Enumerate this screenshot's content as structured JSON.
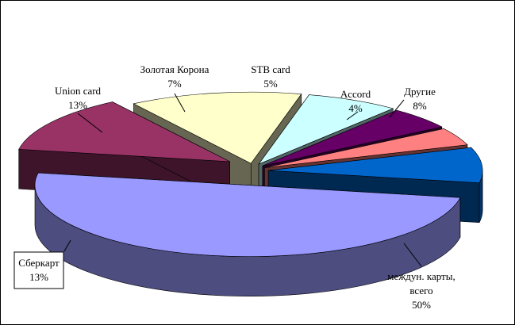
{
  "chart_data": {
    "type": "pie",
    "style": "3d-exploded",
    "categories": [
      "междун. карты, всего",
      "Сберкарт",
      "Union card",
      "Золотая Корона",
      "STB card",
      "Accord",
      "Другие"
    ],
    "values": [
      50,
      13,
      13,
      7,
      5,
      4,
      8
    ],
    "labels": [
      [
        "междун. карты,",
        "всего",
        "50%"
      ],
      [
        "Сберкарт",
        "13%"
      ],
      [
        "Union card",
        "13%"
      ],
      [
        "Золотая Корона",
        "7%"
      ],
      [
        "STB card",
        "5%"
      ],
      [
        "Accord",
        "4%"
      ],
      [
        "Другие",
        "8%"
      ]
    ],
    "colors": [
      "#9999ff",
      "#993366",
      "#ffffcc",
      "#ccffff",
      "#660066",
      "#ff8080",
      "#0066cc"
    ],
    "title": "",
    "legend": "none"
  }
}
